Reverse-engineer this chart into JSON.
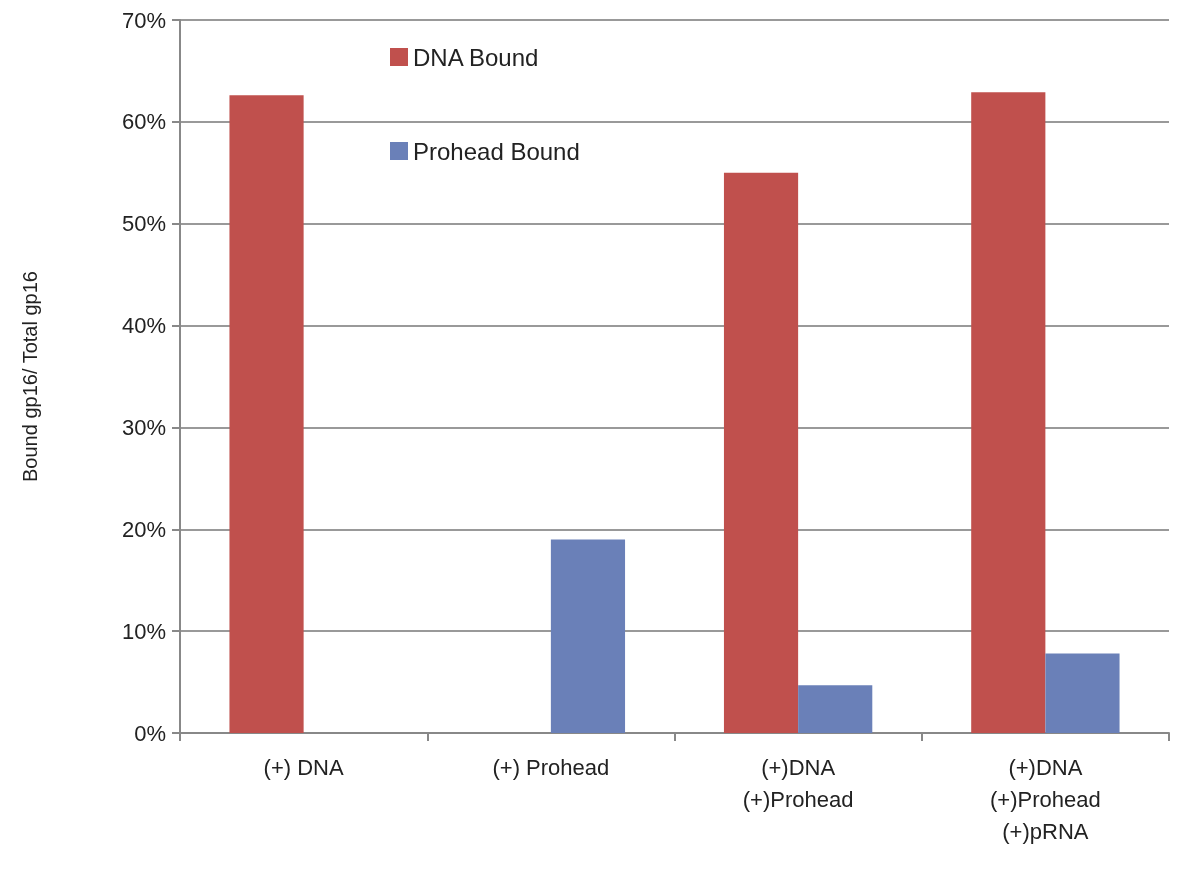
{
  "chart_data": {
    "type": "bar",
    "ylabel": "Bound gp16/ Total gp16",
    "categories": [
      "(+) DNA",
      "(+) Prohead",
      "(+)DNA\n(+)Prohead",
      "(+)DNA\n(+)Prohead\n(+)pRNA"
    ],
    "series": [
      {
        "name": "DNA Bound",
        "color": "#c0504d",
        "values": [
          62.6,
          0,
          55.0,
          62.9
        ]
      },
      {
        "name": "Prohead Bound",
        "color": "#6a80b8",
        "values": [
          0,
          19,
          4.7,
          7.8
        ]
      }
    ],
    "ylim": [
      0,
      70
    ],
    "yticks": [
      {
        "value": 0,
        "label": "0%"
      },
      {
        "value": 10,
        "label": "10%"
      },
      {
        "value": 20,
        "label": "20%"
      },
      {
        "value": 30,
        "label": "30%"
      },
      {
        "value": 40,
        "label": "40%"
      },
      {
        "value": 50,
        "label": "50%"
      },
      {
        "value": 60,
        "label": "60%"
      },
      {
        "value": 70,
        "label": "70%"
      }
    ],
    "grid": "y",
    "legend": "top"
  }
}
